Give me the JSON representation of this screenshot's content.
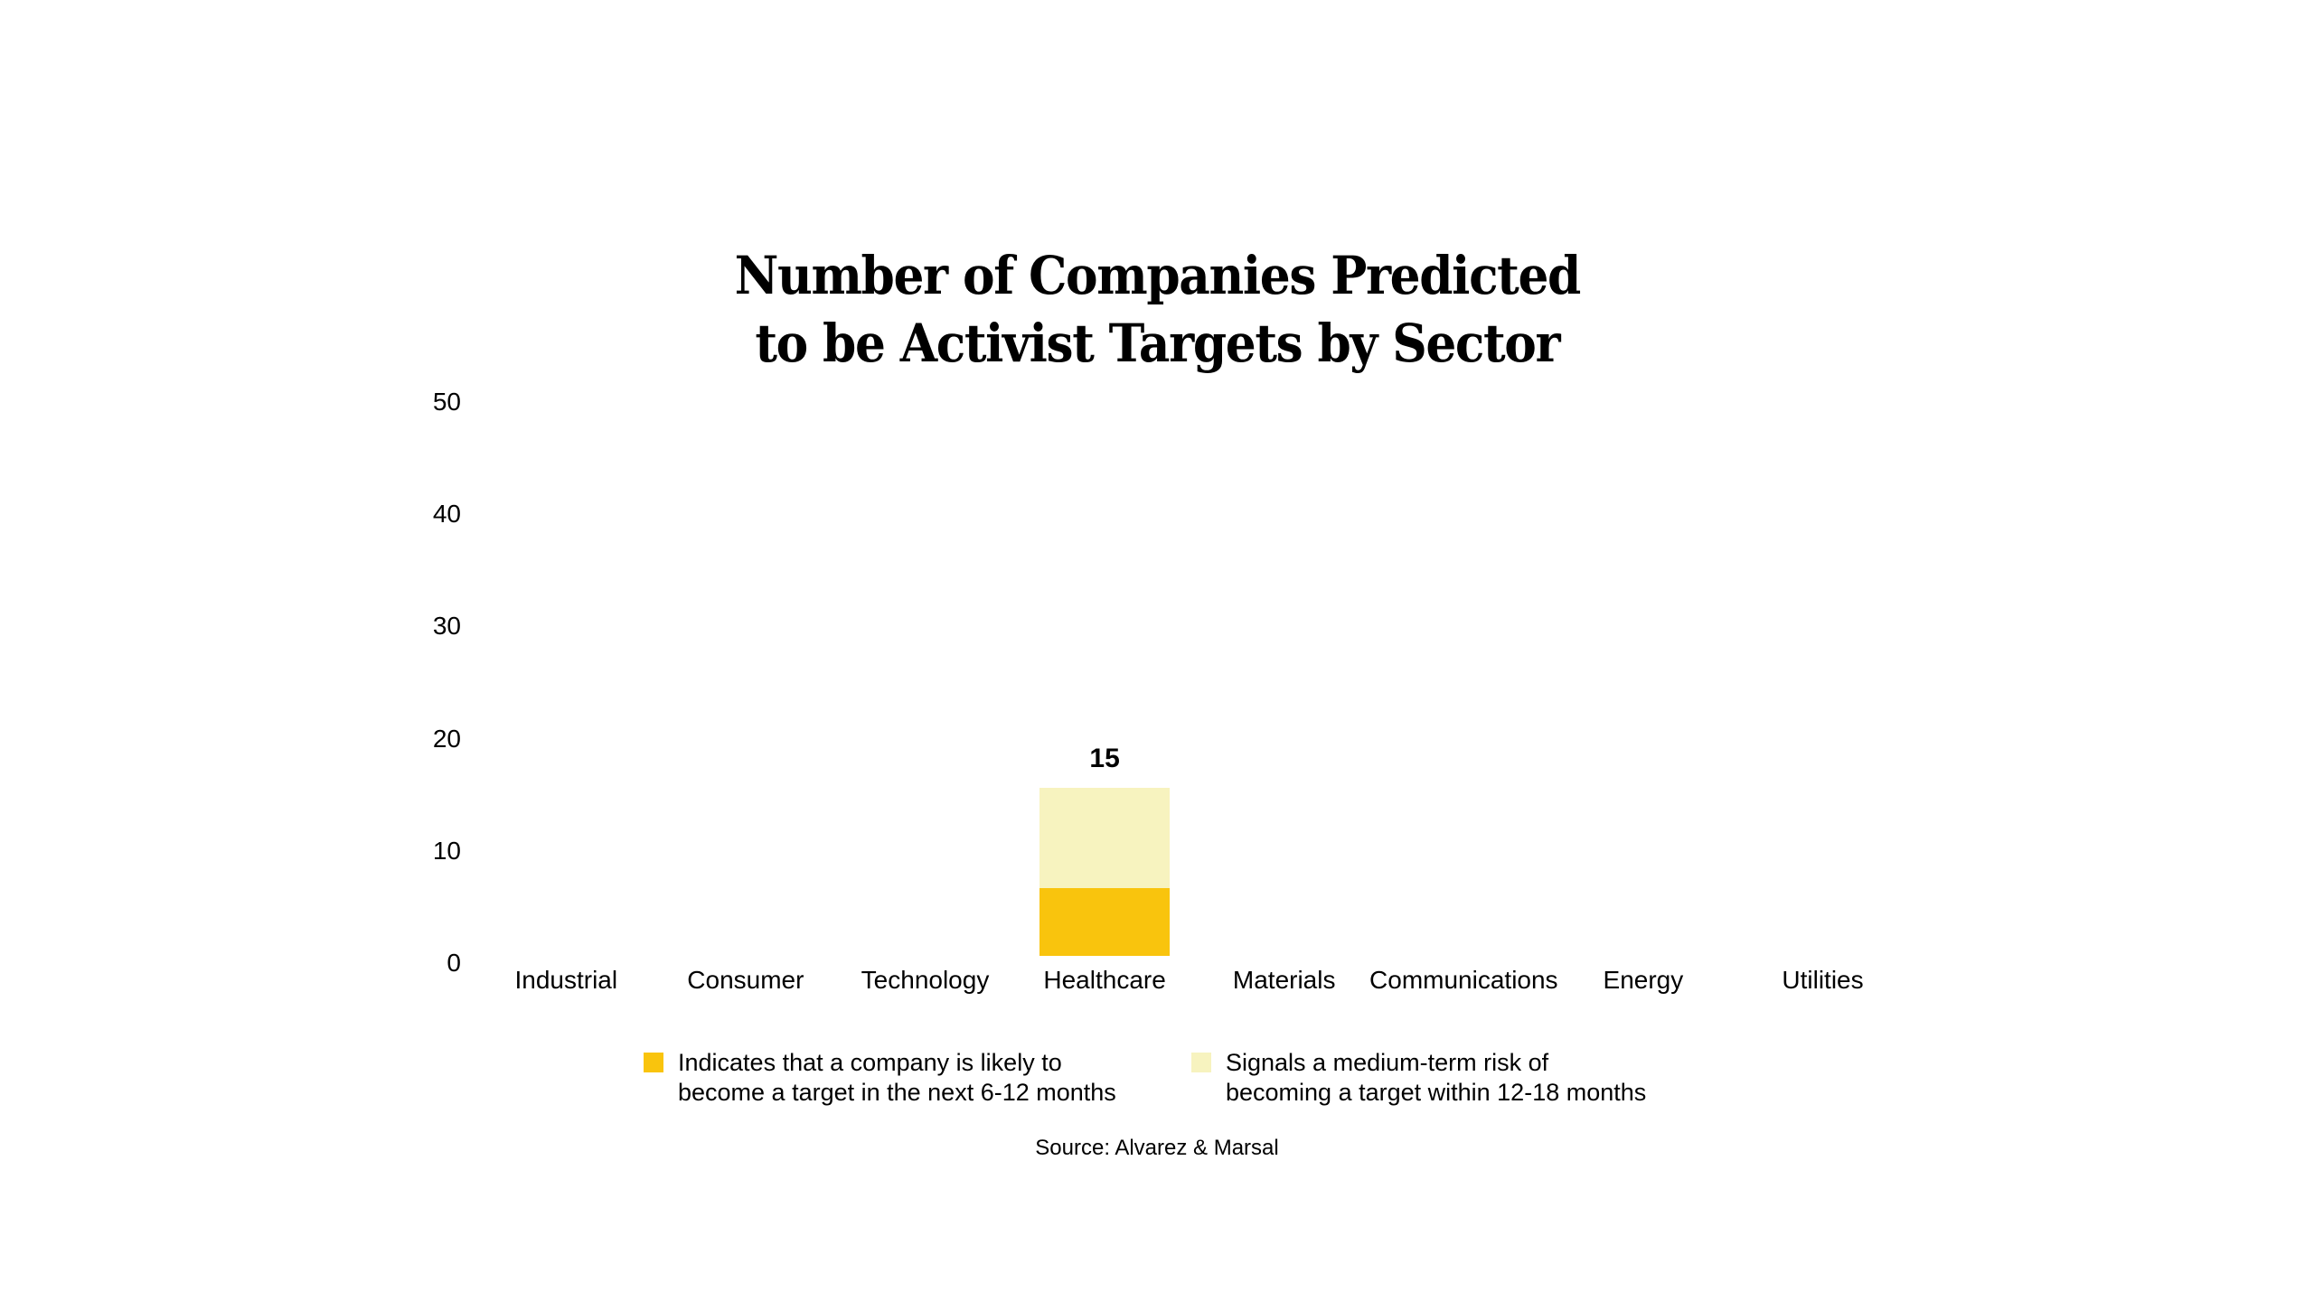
{
  "title": {
    "line1": "Number of Companies Predicted",
    "line2": "to be Activist Targets by Sector"
  },
  "source": "Source: Alvarez & Marsal",
  "colors": {
    "near_term_gold": "#F9C40D",
    "medium_term_cream": "#F7F3BF",
    "text": "#000000",
    "background": "#FFFFFF"
  },
  "chart_data": {
    "type": "bar",
    "stacked": true,
    "title": "Number of Companies Predicted to be Activist Targets by Sector",
    "categories": [
      "Industrial",
      "Consumer",
      "Technology",
      "Healthcare",
      "Materials",
      "Communications",
      "Energy",
      "Utilities"
    ],
    "series": [
      {
        "name": "Indicates that a company is likely to become a target in the next 6-12 months",
        "label_lines": [
          "Indicates that a company is likely to",
          "become a target in the next 6-12 months"
        ],
        "color": "#F9C40D",
        "values": [
          0,
          0,
          0,
          6,
          0,
          0,
          0,
          0
        ]
      },
      {
        "name": "Signals a medium-term risk of becoming a target within 12-18 months",
        "label_lines": [
          "Signals a medium-term risk of",
          "becoming a target within 12-18 months"
        ],
        "color": "#F7F3BF",
        "values": [
          0,
          0,
          0,
          9,
          0,
          0,
          0,
          0
        ]
      }
    ],
    "bar_total_labels": {
      "Healthcare": "15"
    },
    "yticks": [
      0,
      10,
      20,
      30,
      40,
      50
    ],
    "ylim": [
      0,
      50
    ],
    "xlabel": "",
    "ylabel": "",
    "grid": false,
    "axis_lines": false,
    "legend_position": "bottom",
    "source": "Source: Alvarez & Marsal"
  }
}
